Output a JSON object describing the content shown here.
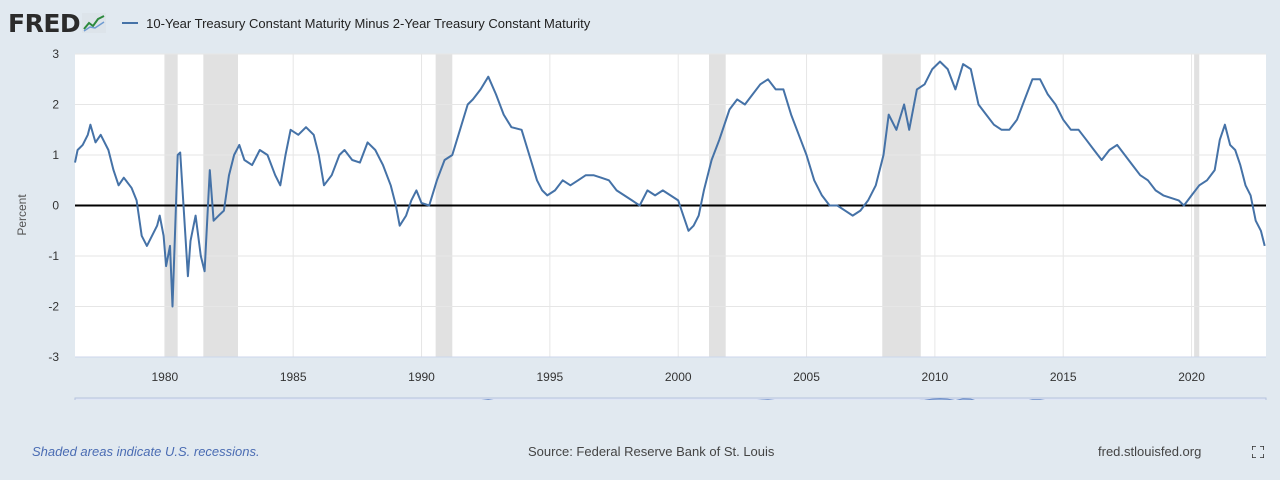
{
  "header": {
    "logo_text": "FRED",
    "legend_label": "10-Year Treasury Constant Maturity Minus 2-Year Treasury Constant Maturity"
  },
  "colors": {
    "series": "#4572a7",
    "recession": "#e1e1e1",
    "zero_line": "#000000",
    "background": "#e1e9f0",
    "navigator": "#8ba6d6"
  },
  "footer": {
    "recession_note": "Shaded areas indicate U.S. recessions.",
    "source": "Source: Federal Reserve Bank of St. Louis",
    "site": "fred.stlouisfed.org"
  },
  "icons": {
    "fullscreen": "fullscreen-icon",
    "logo_mark": "chart-trend-icon"
  },
  "chart_data": {
    "type": "line",
    "ylabel": "Percent",
    "xlim": [
      1976.5,
      2022.9
    ],
    "ylim": [
      -3,
      3
    ],
    "yticks": [
      3,
      2,
      1,
      0,
      -1,
      -2,
      -3
    ],
    "xticks": [
      1980,
      1985,
      1990,
      1995,
      2000,
      2005,
      2010,
      2015,
      2020
    ],
    "grid": true,
    "recessions": [
      [
        1980.0,
        1980.5
      ],
      [
        1981.5,
        1982.85
      ],
      [
        1990.55,
        1991.2
      ],
      [
        2001.2,
        2001.85
      ],
      [
        2007.95,
        2009.45
      ],
      [
        2020.1,
        2020.3
      ]
    ],
    "series": [
      {
        "name": "10-Year Treasury Constant Maturity Minus 2-Year Treasury Constant Maturity",
        "points": [
          [
            1976.5,
            0.85
          ],
          [
            1976.6,
            1.1
          ],
          [
            1976.8,
            1.2
          ],
          [
            1977.0,
            1.4
          ],
          [
            1977.1,
            1.6
          ],
          [
            1977.3,
            1.25
          ],
          [
            1977.5,
            1.4
          ],
          [
            1977.8,
            1.1
          ],
          [
            1978.0,
            0.7
          ],
          [
            1978.2,
            0.4
          ],
          [
            1978.4,
            0.55
          ],
          [
            1978.7,
            0.35
          ],
          [
            1978.9,
            0.1
          ],
          [
            1979.1,
            -0.6
          ],
          [
            1979.3,
            -0.8
          ],
          [
            1979.5,
            -0.6
          ],
          [
            1979.7,
            -0.4
          ],
          [
            1979.8,
            -0.2
          ],
          [
            1979.95,
            -0.6
          ],
          [
            1980.05,
            -1.2
          ],
          [
            1980.2,
            -0.8
          ],
          [
            1980.3,
            -2.0
          ],
          [
            1980.4,
            -0.5
          ],
          [
            1980.5,
            1.0
          ],
          [
            1980.6,
            1.05
          ],
          [
            1980.8,
            -0.6
          ],
          [
            1980.9,
            -1.4
          ],
          [
            1981.0,
            -0.7
          ],
          [
            1981.2,
            -0.2
          ],
          [
            1981.4,
            -1.0
          ],
          [
            1981.55,
            -1.3
          ],
          [
            1981.75,
            0.7
          ],
          [
            1981.9,
            -0.3
          ],
          [
            1982.1,
            -0.2
          ],
          [
            1982.3,
            -0.1
          ],
          [
            1982.5,
            0.6
          ],
          [
            1982.7,
            1.0
          ],
          [
            1982.9,
            1.2
          ],
          [
            1983.1,
            0.9
          ],
          [
            1983.4,
            0.8
          ],
          [
            1983.7,
            1.1
          ],
          [
            1984.0,
            1.0
          ],
          [
            1984.3,
            0.6
          ],
          [
            1984.5,
            0.4
          ],
          [
            1984.7,
            1.0
          ],
          [
            1984.9,
            1.5
          ],
          [
            1985.2,
            1.4
          ],
          [
            1985.5,
            1.55
          ],
          [
            1985.8,
            1.4
          ],
          [
            1986.0,
            1.0
          ],
          [
            1986.2,
            0.4
          ],
          [
            1986.5,
            0.6
          ],
          [
            1986.8,
            1.0
          ],
          [
            1987.0,
            1.1
          ],
          [
            1987.3,
            0.9
          ],
          [
            1987.6,
            0.85
          ],
          [
            1987.9,
            1.25
          ],
          [
            1988.2,
            1.1
          ],
          [
            1988.5,
            0.8
          ],
          [
            1988.8,
            0.4
          ],
          [
            1989.0,
            0.0
          ],
          [
            1989.15,
            -0.4
          ],
          [
            1989.4,
            -0.2
          ],
          [
            1989.6,
            0.1
          ],
          [
            1989.8,
            0.3
          ],
          [
            1990.0,
            0.05
          ],
          [
            1990.3,
            0.0
          ],
          [
            1990.6,
            0.5
          ],
          [
            1990.9,
            0.9
          ],
          [
            1991.2,
            1.0
          ],
          [
            1991.5,
            1.5
          ],
          [
            1991.8,
            2.0
          ],
          [
            1992.0,
            2.1
          ],
          [
            1992.3,
            2.3
          ],
          [
            1992.6,
            2.55
          ],
          [
            1992.9,
            2.2
          ],
          [
            1993.2,
            1.8
          ],
          [
            1993.5,
            1.55
          ],
          [
            1993.9,
            1.5
          ],
          [
            1994.2,
            1.0
          ],
          [
            1994.5,
            0.5
          ],
          [
            1994.7,
            0.3
          ],
          [
            1994.9,
            0.2
          ],
          [
            1995.2,
            0.3
          ],
          [
            1995.5,
            0.5
          ],
          [
            1995.8,
            0.4
          ],
          [
            1996.1,
            0.5
          ],
          [
            1996.4,
            0.6
          ],
          [
            1996.7,
            0.6
          ],
          [
            1997.0,
            0.55
          ],
          [
            1997.3,
            0.5
          ],
          [
            1997.6,
            0.3
          ],
          [
            1997.9,
            0.2
          ],
          [
            1998.2,
            0.1
          ],
          [
            1998.5,
            0.0
          ],
          [
            1998.8,
            0.3
          ],
          [
            1999.1,
            0.2
          ],
          [
            1999.4,
            0.3
          ],
          [
            1999.7,
            0.2
          ],
          [
            2000.0,
            0.1
          ],
          [
            2000.2,
            -0.2
          ],
          [
            2000.4,
            -0.5
          ],
          [
            2000.6,
            -0.4
          ],
          [
            2000.8,
            -0.2
          ],
          [
            2001.0,
            0.3
          ],
          [
            2001.3,
            0.9
          ],
          [
            2001.6,
            1.3
          ],
          [
            2001.8,
            1.6
          ],
          [
            2002.0,
            1.9
          ],
          [
            2002.3,
            2.1
          ],
          [
            2002.6,
            2.0
          ],
          [
            2002.9,
            2.2
          ],
          [
            2003.2,
            2.4
          ],
          [
            2003.5,
            2.5
          ],
          [
            2003.8,
            2.3
          ],
          [
            2004.1,
            2.3
          ],
          [
            2004.4,
            1.8
          ],
          [
            2004.7,
            1.4
          ],
          [
            2005.0,
            1.0
          ],
          [
            2005.3,
            0.5
          ],
          [
            2005.6,
            0.2
          ],
          [
            2005.9,
            0.0
          ],
          [
            2006.2,
            0.0
          ],
          [
            2006.5,
            -0.1
          ],
          [
            2006.8,
            -0.2
          ],
          [
            2007.1,
            -0.1
          ],
          [
            2007.4,
            0.1
          ],
          [
            2007.7,
            0.4
          ],
          [
            2008.0,
            1.0
          ],
          [
            2008.2,
            1.8
          ],
          [
            2008.5,
            1.5
          ],
          [
            2008.8,
            2.0
          ],
          [
            2009.0,
            1.5
          ],
          [
            2009.3,
            2.3
          ],
          [
            2009.6,
            2.4
          ],
          [
            2009.9,
            2.7
          ],
          [
            2010.2,
            2.85
          ],
          [
            2010.5,
            2.7
          ],
          [
            2010.8,
            2.3
          ],
          [
            2011.1,
            2.8
          ],
          [
            2011.4,
            2.7
          ],
          [
            2011.7,
            2.0
          ],
          [
            2012.0,
            1.8
          ],
          [
            2012.3,
            1.6
          ],
          [
            2012.6,
            1.5
          ],
          [
            2012.9,
            1.5
          ],
          [
            2013.2,
            1.7
          ],
          [
            2013.5,
            2.1
          ],
          [
            2013.8,
            2.5
          ],
          [
            2014.1,
            2.5
          ],
          [
            2014.4,
            2.2
          ],
          [
            2014.7,
            2.0
          ],
          [
            2015.0,
            1.7
          ],
          [
            2015.3,
            1.5
          ],
          [
            2015.6,
            1.5
          ],
          [
            2015.9,
            1.3
          ],
          [
            2016.2,
            1.1
          ],
          [
            2016.5,
            0.9
          ],
          [
            2016.8,
            1.1
          ],
          [
            2017.1,
            1.2
          ],
          [
            2017.4,
            1.0
          ],
          [
            2017.7,
            0.8
          ],
          [
            2018.0,
            0.6
          ],
          [
            2018.3,
            0.5
          ],
          [
            2018.6,
            0.3
          ],
          [
            2018.9,
            0.2
          ],
          [
            2019.2,
            0.15
          ],
          [
            2019.5,
            0.1
          ],
          [
            2019.7,
            0.0
          ],
          [
            2020.0,
            0.2
          ],
          [
            2020.3,
            0.4
          ],
          [
            2020.6,
            0.5
          ],
          [
            2020.9,
            0.7
          ],
          [
            2021.1,
            1.3
          ],
          [
            2021.3,
            1.6
          ],
          [
            2021.5,
            1.2
          ],
          [
            2021.7,
            1.1
          ],
          [
            2021.9,
            0.8
          ],
          [
            2022.1,
            0.4
          ],
          [
            2022.3,
            0.2
          ],
          [
            2022.5,
            -0.3
          ],
          [
            2022.7,
            -0.5
          ],
          [
            2022.85,
            -0.8
          ]
        ]
      }
    ]
  }
}
